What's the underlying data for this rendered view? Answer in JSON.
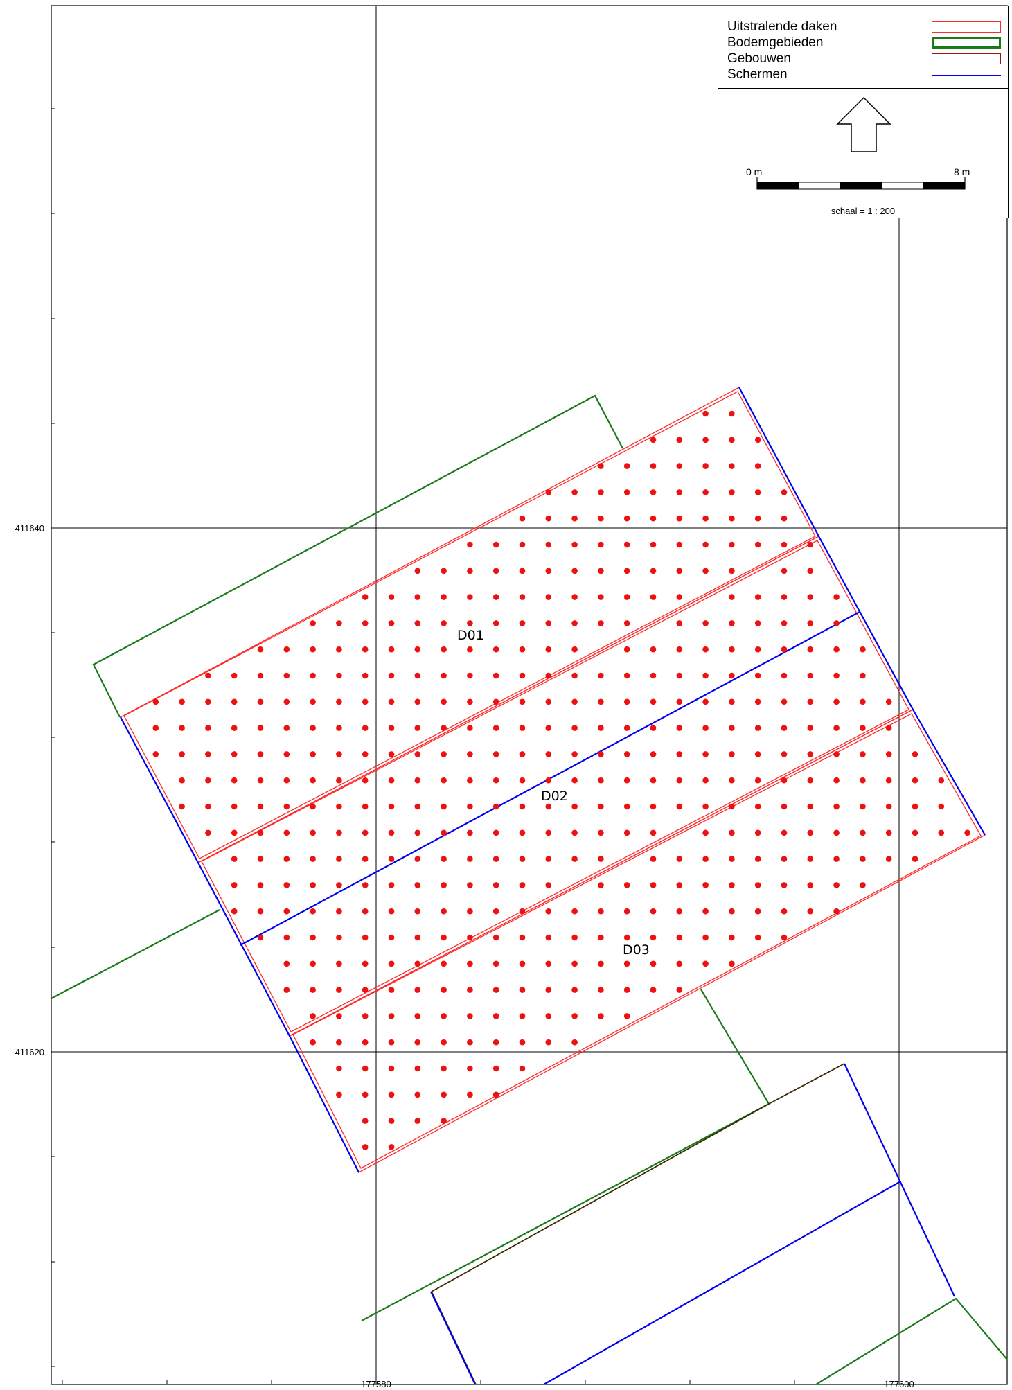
{
  "axes": {
    "x_labels": [
      "177580",
      "177600"
    ],
    "y_labels": [
      "411640",
      "411620"
    ]
  },
  "roof_labels": [
    "D01",
    "D02",
    "D03"
  ],
  "legend": {
    "items": [
      {
        "label": "Uitstralende daken",
        "style": "roof",
        "color": "#ff2a2a"
      },
      {
        "label": "Bodemgebieden",
        "style": "soil",
        "color": "#1a7a1a"
      },
      {
        "label": "Gebouwen",
        "style": "building",
        "color": "#a01414"
      },
      {
        "label": "Schermen",
        "style": "screen",
        "color": "#0000ee"
      }
    ],
    "north_arrow": "north-arrow-icon",
    "scale": {
      "start": "0 m",
      "end": "8 m",
      "text": "schaal = 1 : 200"
    }
  },
  "colors": {
    "grid": "#000000",
    "roof": "#ff2a2a",
    "soil": "#1a7a1a",
    "building": "#a01414",
    "screen": "#0000ee",
    "points": "#ee1111"
  }
}
